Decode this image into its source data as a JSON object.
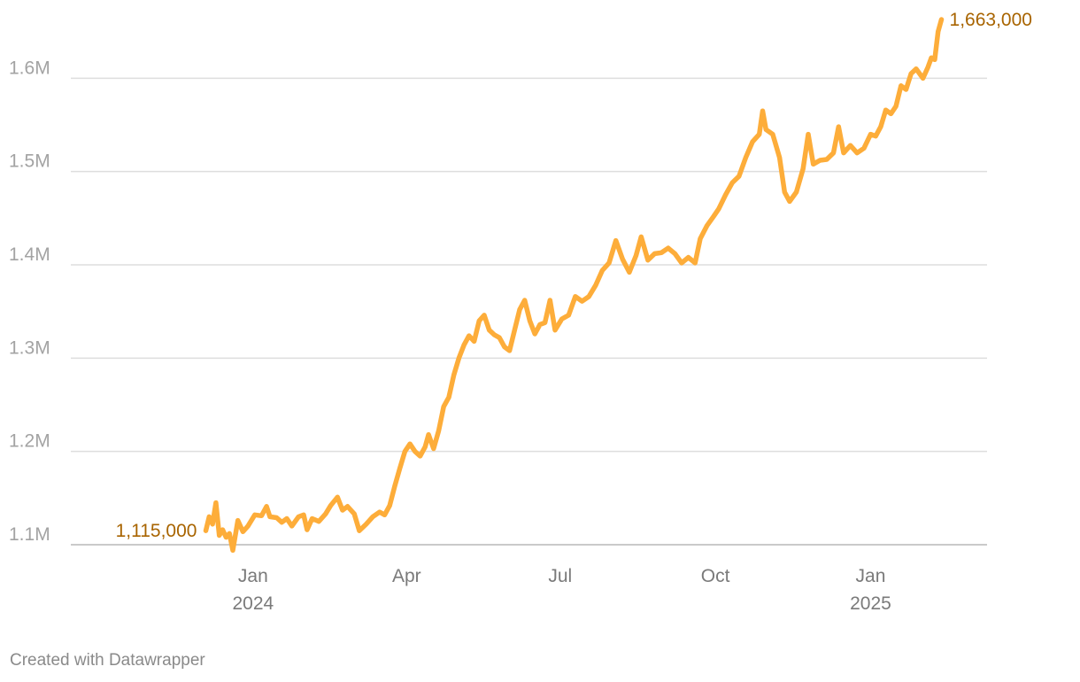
{
  "chart_data": {
    "type": "line",
    "title": "",
    "xlabel": "",
    "ylabel": "",
    "ylim": [
      1100000,
      1663000
    ],
    "y_ticks": [
      {
        "value": 1100000,
        "label": "1.1M"
      },
      {
        "value": 1200000,
        "label": "1.2M"
      },
      {
        "value": 1300000,
        "label": "1.3M"
      },
      {
        "value": 1400000,
        "label": "1.4M"
      },
      {
        "value": 1500000,
        "label": "1.5M"
      },
      {
        "value": 1600000,
        "label": "1.6M"
      }
    ],
    "x_ticks": [
      {
        "date": "2024-01-01",
        "label": "Jan",
        "sublabel": "2024"
      },
      {
        "date": "2024-04-01",
        "label": "Apr",
        "sublabel": ""
      },
      {
        "date": "2024-07-01",
        "label": "Jul",
        "sublabel": ""
      },
      {
        "date": "2024-10-01",
        "label": "Oct",
        "sublabel": ""
      },
      {
        "date": "2025-01-01",
        "label": "Jan",
        "sublabel": "2025"
      }
    ],
    "grid": true,
    "legend": "none",
    "start_label": "1,115,000",
    "end_label": "1,663,000",
    "series": [
      {
        "color": "#fdad3a",
        "points": [
          [
            "2023-12-04",
            1115000
          ],
          [
            "2023-12-06",
            1130000
          ],
          [
            "2023-12-08",
            1122000
          ],
          [
            "2023-12-10",
            1145000
          ],
          [
            "2023-12-12",
            1110000
          ],
          [
            "2023-12-14",
            1116000
          ],
          [
            "2023-12-16",
            1108000
          ],
          [
            "2023-12-18",
            1112000
          ],
          [
            "2023-12-20",
            1094000
          ],
          [
            "2023-12-23",
            1126000
          ],
          [
            "2023-12-26",
            1114000
          ],
          [
            "2023-12-29",
            1120000
          ],
          [
            "2024-01-02",
            1132000
          ],
          [
            "2024-01-06",
            1131000
          ],
          [
            "2024-01-09",
            1141000
          ],
          [
            "2024-01-11",
            1130000
          ],
          [
            "2024-01-15",
            1129000
          ],
          [
            "2024-01-18",
            1124000
          ],
          [
            "2024-01-21",
            1128000
          ],
          [
            "2024-01-24",
            1120000
          ],
          [
            "2024-01-28",
            1130000
          ],
          [
            "2024-01-31",
            1132000
          ],
          [
            "2024-02-02",
            1116000
          ],
          [
            "2024-02-05",
            1128000
          ],
          [
            "2024-02-09",
            1125000
          ],
          [
            "2024-02-13",
            1133000
          ],
          [
            "2024-02-16",
            1142000
          ],
          [
            "2024-02-20",
            1151000
          ],
          [
            "2024-02-23",
            1137000
          ],
          [
            "2024-02-26",
            1141000
          ],
          [
            "2024-03-01",
            1133000
          ],
          [
            "2024-03-04",
            1115000
          ],
          [
            "2024-03-08",
            1122000
          ],
          [
            "2024-03-12",
            1130000
          ],
          [
            "2024-03-16",
            1135000
          ],
          [
            "2024-03-19",
            1132000
          ],
          [
            "2024-03-22",
            1142000
          ],
          [
            "2024-03-25",
            1163000
          ],
          [
            "2024-03-28",
            1182000
          ],
          [
            "2024-03-31",
            1200000
          ],
          [
            "2024-04-03",
            1208000
          ],
          [
            "2024-04-06",
            1200000
          ],
          [
            "2024-04-09",
            1195000
          ],
          [
            "2024-04-12",
            1205000
          ],
          [
            "2024-04-14",
            1218000
          ],
          [
            "2024-04-17",
            1203000
          ],
          [
            "2024-04-20",
            1222000
          ],
          [
            "2024-04-23",
            1248000
          ],
          [
            "2024-04-26",
            1258000
          ],
          [
            "2024-04-29",
            1282000
          ],
          [
            "2024-05-02",
            1300000
          ],
          [
            "2024-05-05",
            1314000
          ],
          [
            "2024-05-08",
            1324000
          ],
          [
            "2024-05-11",
            1318000
          ],
          [
            "2024-05-14",
            1340000
          ],
          [
            "2024-05-17",
            1346000
          ],
          [
            "2024-05-20",
            1330000
          ],
          [
            "2024-05-23",
            1325000
          ],
          [
            "2024-05-26",
            1322000
          ],
          [
            "2024-05-29",
            1312000
          ],
          [
            "2024-06-01",
            1308000
          ],
          [
            "2024-06-04",
            1330000
          ],
          [
            "2024-06-07",
            1352000
          ],
          [
            "2024-06-10",
            1362000
          ],
          [
            "2024-06-13",
            1340000
          ],
          [
            "2024-06-16",
            1326000
          ],
          [
            "2024-06-19",
            1336000
          ],
          [
            "2024-06-22",
            1338000
          ],
          [
            "2024-06-25",
            1362000
          ],
          [
            "2024-06-28",
            1330000
          ],
          [
            "2024-07-02",
            1342000
          ],
          [
            "2024-07-06",
            1346000
          ],
          [
            "2024-07-10",
            1366000
          ],
          [
            "2024-07-14",
            1361000
          ],
          [
            "2024-07-18",
            1366000
          ],
          [
            "2024-07-22",
            1378000
          ],
          [
            "2024-07-26",
            1394000
          ],
          [
            "2024-07-30",
            1402000
          ],
          [
            "2024-08-03",
            1426000
          ],
          [
            "2024-08-07",
            1406000
          ],
          [
            "2024-08-11",
            1392000
          ],
          [
            "2024-08-15",
            1410000
          ],
          [
            "2024-08-18",
            1430000
          ],
          [
            "2024-08-22",
            1405000
          ],
          [
            "2024-08-26",
            1412000
          ],
          [
            "2024-08-30",
            1413000
          ],
          [
            "2024-09-03",
            1418000
          ],
          [
            "2024-09-07",
            1412000
          ],
          [
            "2024-09-11",
            1402000
          ],
          [
            "2024-09-15",
            1408000
          ],
          [
            "2024-09-19",
            1402000
          ],
          [
            "2024-09-22",
            1428000
          ],
          [
            "2024-09-26",
            1442000
          ],
          [
            "2024-09-30",
            1452000
          ],
          [
            "2024-10-03",
            1460000
          ],
          [
            "2024-10-07",
            1475000
          ],
          [
            "2024-10-11",
            1488000
          ],
          [
            "2024-10-15",
            1495000
          ],
          [
            "2024-10-19",
            1515000
          ],
          [
            "2024-10-23",
            1532000
          ],
          [
            "2024-10-27",
            1540000
          ],
          [
            "2024-10-29",
            1565000
          ],
          [
            "2024-10-31",
            1545000
          ],
          [
            "2024-11-04",
            1540000
          ],
          [
            "2024-11-08",
            1515000
          ],
          [
            "2024-11-11",
            1478000
          ],
          [
            "2024-11-14",
            1468000
          ],
          [
            "2024-11-18",
            1478000
          ],
          [
            "2024-11-22",
            1503000
          ],
          [
            "2024-11-25",
            1540000
          ],
          [
            "2024-11-28",
            1508000
          ],
          [
            "2024-12-02",
            1512000
          ],
          [
            "2024-12-06",
            1513000
          ],
          [
            "2024-12-10",
            1520000
          ],
          [
            "2024-12-13",
            1548000
          ],
          [
            "2024-12-16",
            1520000
          ],
          [
            "2024-12-20",
            1528000
          ],
          [
            "2024-12-24",
            1520000
          ],
          [
            "2024-12-28",
            1525000
          ],
          [
            "2025-01-01",
            1540000
          ],
          [
            "2025-01-04",
            1538000
          ],
          [
            "2025-01-07",
            1548000
          ],
          [
            "2025-01-10",
            1566000
          ],
          [
            "2025-01-13",
            1562000
          ],
          [
            "2025-01-16",
            1570000
          ],
          [
            "2025-01-19",
            1592000
          ],
          [
            "2025-01-22",
            1588000
          ],
          [
            "2025-01-25",
            1605000
          ],
          [
            "2025-01-28",
            1610000
          ],
          [
            "2025-02-01",
            1600000
          ],
          [
            "2025-02-04",
            1612000
          ],
          [
            "2025-02-06",
            1622000
          ],
          [
            "2025-02-08",
            1620000
          ],
          [
            "2025-02-10",
            1650000
          ],
          [
            "2025-02-12",
            1663000
          ]
        ]
      }
    ]
  },
  "colors": {
    "line": "#fdad3a",
    "label": "#a86400",
    "grid": "#dedede",
    "baseline": "#b9b9b9"
  },
  "footer": {
    "credit": "Created with Datawrapper"
  }
}
